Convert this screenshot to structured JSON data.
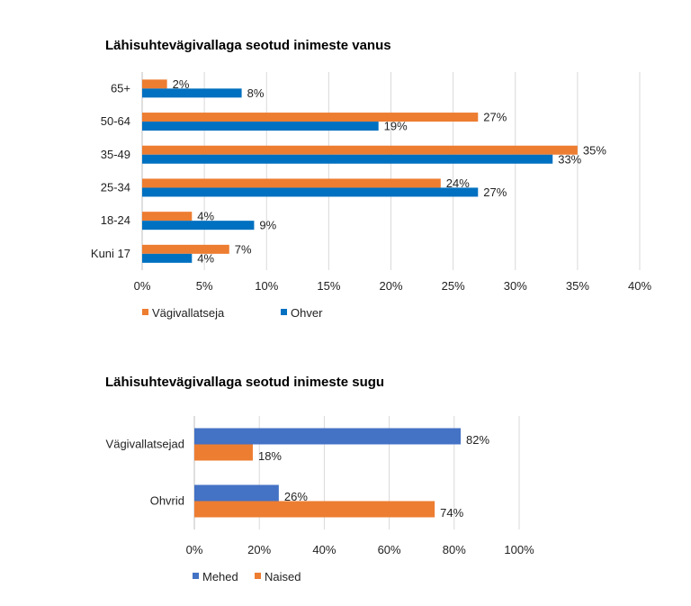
{
  "chart_data": [
    {
      "type": "bar",
      "orientation": "horizontal",
      "title": "Lähisuhtevägivallaga seotud inimeste vanus",
      "categories": [
        "65+",
        "50-64",
        "35-49",
        "25-34",
        "18-24",
        "Kuni 17"
      ],
      "series": [
        {
          "name": "Vägivallatseja",
          "color": "#ED7D31",
          "values": [
            2,
            27,
            35,
            24,
            4,
            7
          ],
          "labels": [
            "2%",
            "27%",
            "35%",
            "24%",
            "4%",
            "7%"
          ]
        },
        {
          "name": "Ohver",
          "color": "#0070C0",
          "values": [
            8,
            19,
            33,
            27,
            9,
            4
          ],
          "labels": [
            "8%",
            "19%",
            "33%",
            "27%",
            "9%",
            "4%"
          ]
        }
      ],
      "xlim": [
        0,
        40
      ],
      "xticks": [
        "0%",
        "5%",
        "10%",
        "15%",
        "20%",
        "25%",
        "30%",
        "35%",
        "40%"
      ],
      "grid": true,
      "legend_position": "bottom-left"
    },
    {
      "type": "bar",
      "orientation": "horizontal",
      "title": "Lähisuhtevägivallaga seotud inimeste sugu",
      "categories": [
        "Vägivallatsejad",
        "Ohvrid"
      ],
      "series": [
        {
          "name": "Mehed",
          "color": "#4472C4",
          "values": [
            82,
            26
          ],
          "labels": [
            "82%",
            "26%"
          ]
        },
        {
          "name": "Naised",
          "color": "#ED7D31",
          "values": [
            18,
            74
          ],
          "labels": [
            "18%",
            "74%"
          ]
        }
      ],
      "xlim": [
        0,
        100
      ],
      "xticks": [
        "0%",
        "20%",
        "40%",
        "60%",
        "80%",
        "100%"
      ],
      "grid": true,
      "legend_position": "bottom-left"
    }
  ]
}
